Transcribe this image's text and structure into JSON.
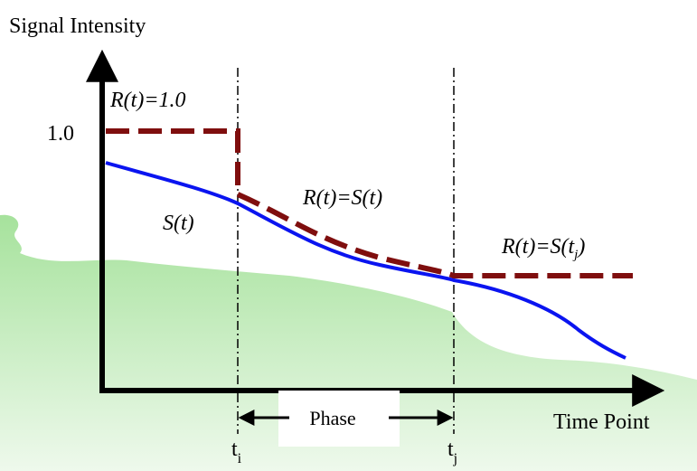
{
  "axes": {
    "y_label": "Signal Intensity",
    "x_label": "Time Point",
    "y_tick": "1.0"
  },
  "curves": {
    "reference_before": "R(t)=1.0",
    "reference_during": "R(t)=S(t)",
    "signal": "S(t)",
    "reference_after": {
      "text": "R(t)=S(t",
      "subscript": "j",
      "close": ")"
    }
  },
  "markers": [
    {
      "text": "t",
      "subscript": "i"
    },
    {
      "text": "t",
      "subscript": "j"
    }
  ],
  "phase": "Phase"
}
